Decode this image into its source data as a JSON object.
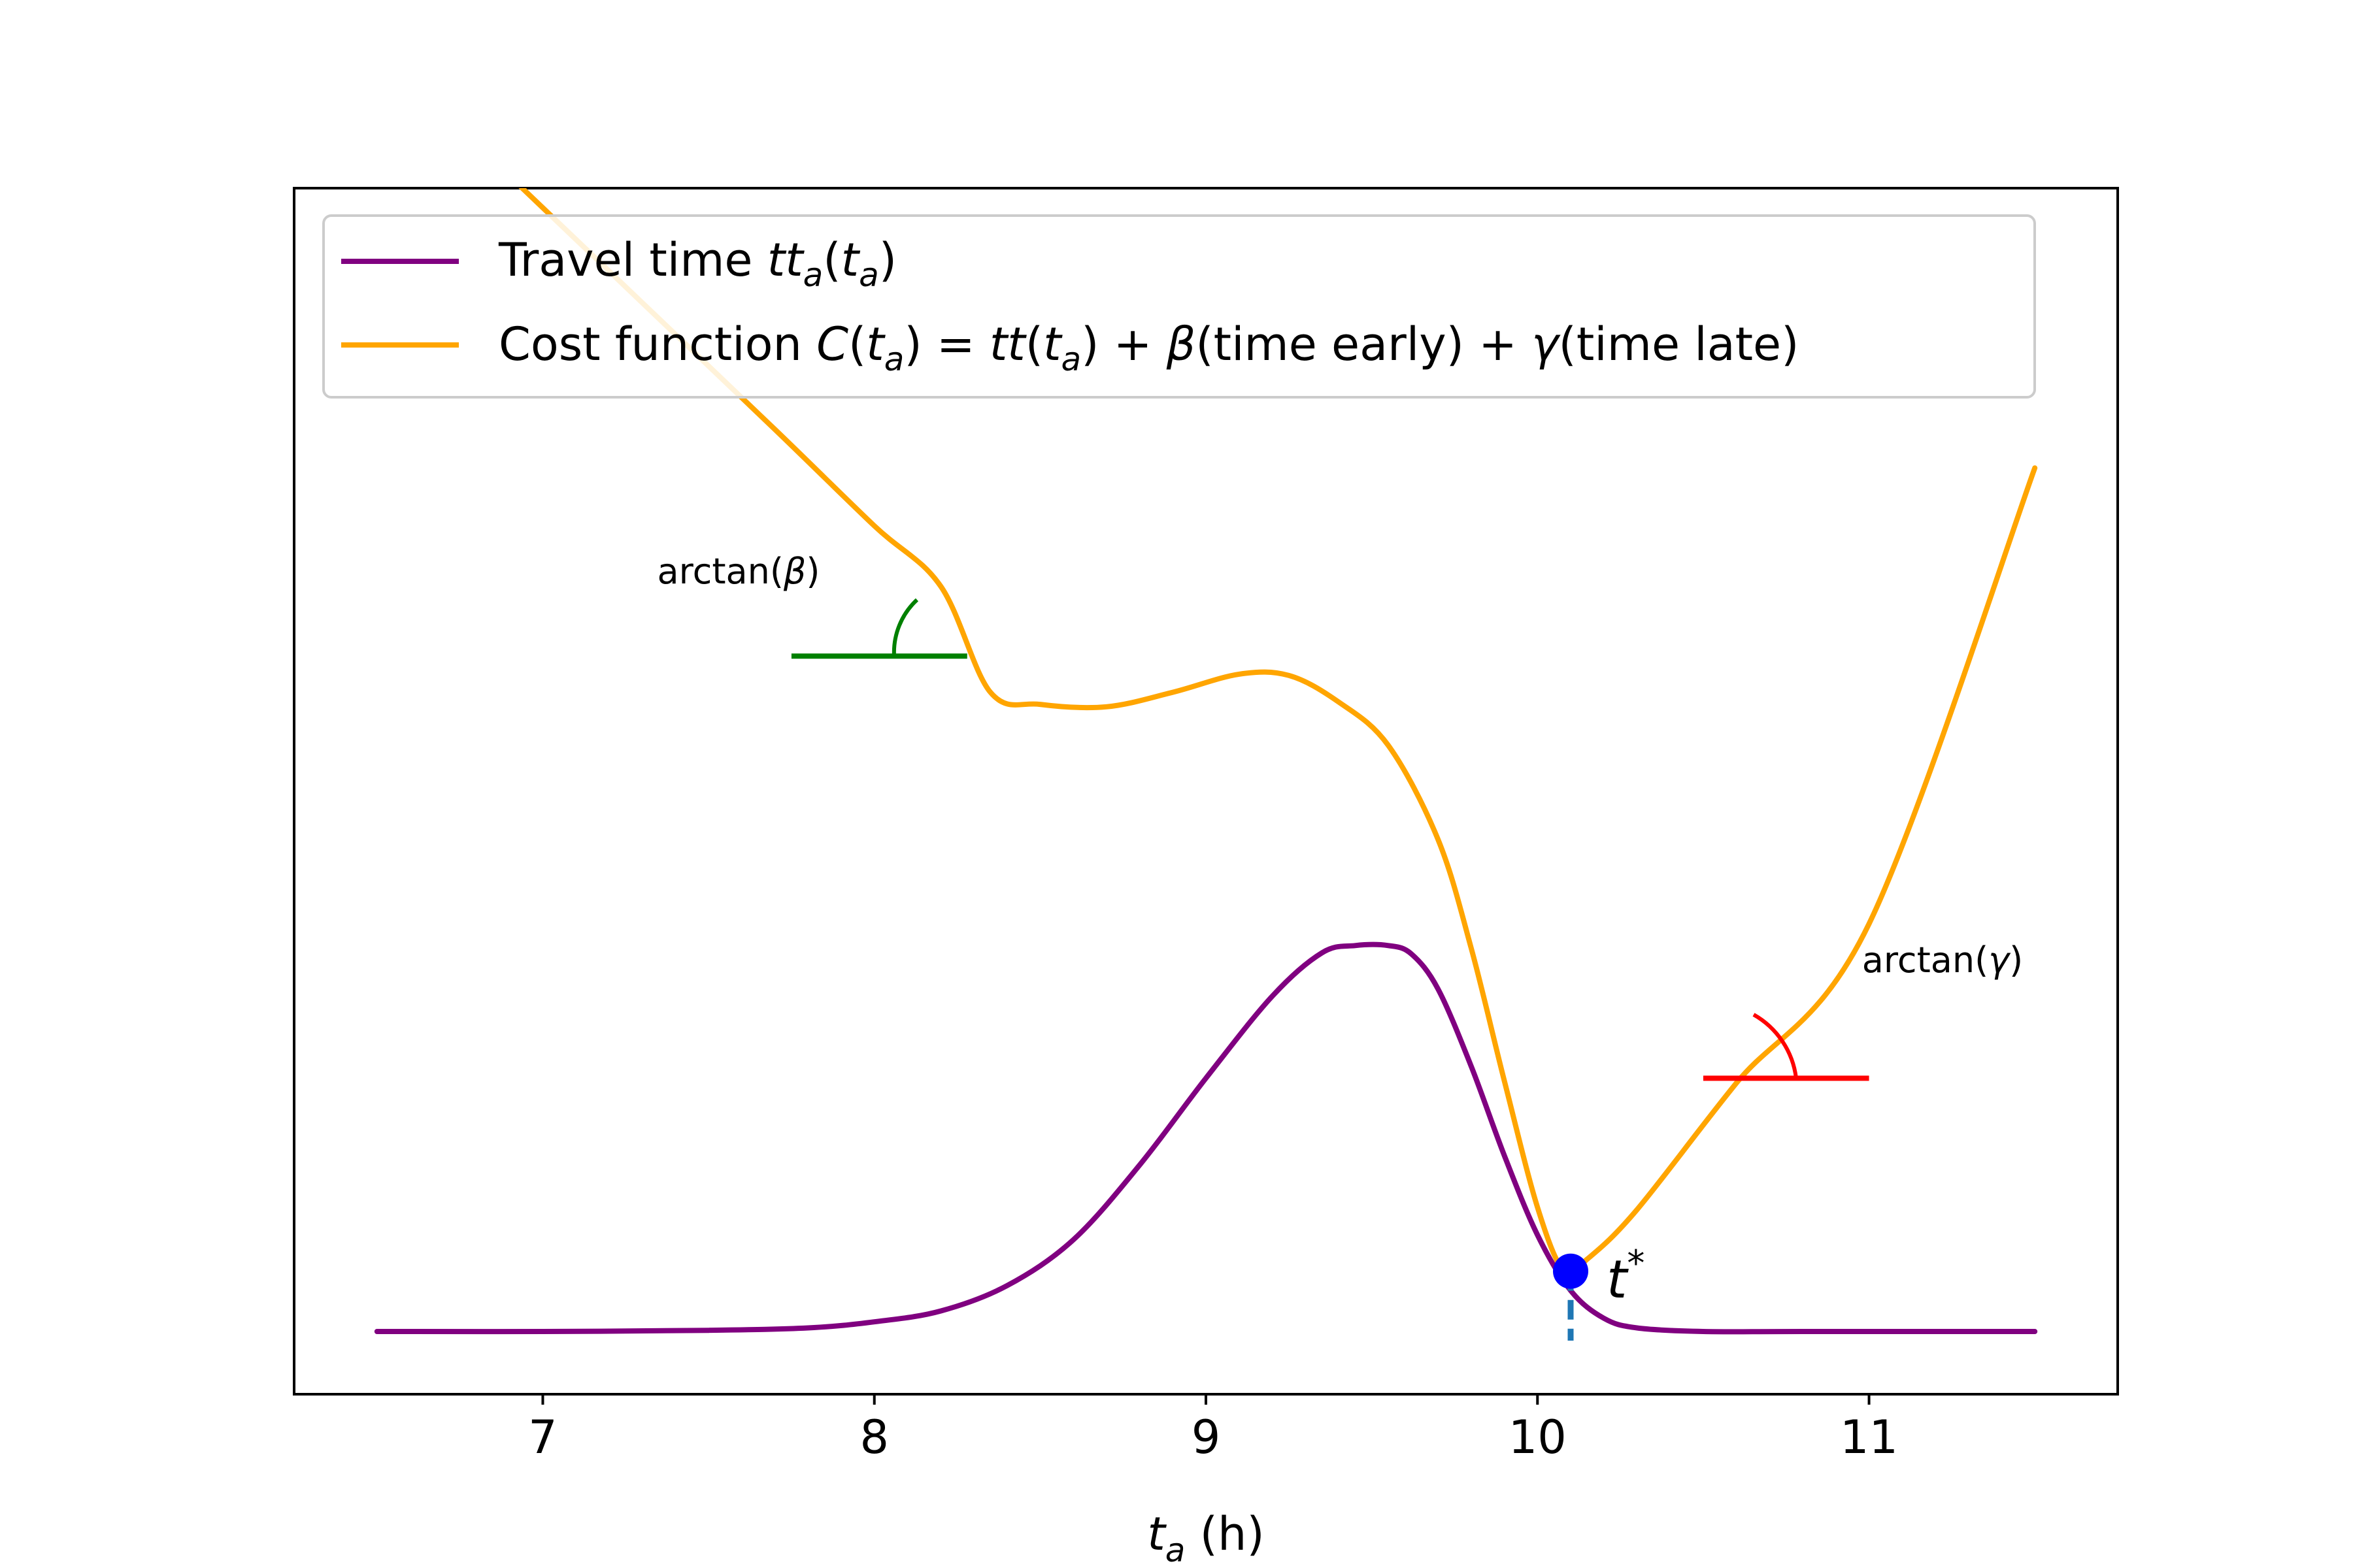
{
  "chart_data": {
    "type": "line",
    "xlabel": "t",
    "xlabel_sub": "a",
    "xlabel_unit": " (h)",
    "xlim": [
      6.25,
      11.75
    ],
    "ylim": [
      0,
      1
    ],
    "x_ticks": [
      7,
      8,
      9,
      10,
      11
    ],
    "x_tick_labels": [
      "7",
      "8",
      "9",
      "10",
      "11"
    ],
    "y_ticks_shown": false,
    "grid": false,
    "legend_position": "top-left",
    "legend": {
      "travel_prefix": "Travel time ",
      "travel_symbol": "tt",
      "sub_a": "a",
      "open_paren": "(",
      "close_paren": ")",
      "var_t": "t",
      "cost_prefix": "Cost function ",
      "var_C": "C",
      "equals": " = ",
      "plus": " + ",
      "beta": "β",
      "gamma": "γ",
      "time_early": "(time early)",
      "time_late": "(time late)"
    },
    "series": [
      {
        "name": "Travel time tt_a(t_a)",
        "color": "#800080",
        "x": [
          6.5,
          7.0,
          7.5,
          7.8,
          8.0,
          8.2,
          8.4,
          8.6,
          8.8,
          9.0,
          9.2,
          9.35,
          9.45,
          9.55,
          9.62,
          9.7,
          9.8,
          9.9,
          10.0,
          10.1,
          10.2,
          10.3,
          10.5,
          10.8,
          11.5
        ],
        "y": [
          0.052,
          0.052,
          0.053,
          0.055,
          0.06,
          0.069,
          0.09,
          0.128,
          0.19,
          0.262,
          0.33,
          0.366,
          0.372,
          0.372,
          0.365,
          0.336,
          0.272,
          0.198,
          0.132,
          0.086,
          0.063,
          0.055,
          0.052,
          0.052,
          0.052
        ]
      },
      {
        "name": "Cost function C(t_a) = tt(t_a) + β(time early) + γ(time late)",
        "color": "#ffa500",
        "x": [
          6.9,
          7.3,
          7.7,
          8.0,
          8.2,
          8.35,
          8.5,
          8.7,
          8.9,
          9.1,
          9.25,
          9.4,
          9.55,
          9.7,
          9.8,
          9.9,
          10.0,
          10.08,
          10.15,
          10.3,
          10.6,
          11.0,
          11.5
        ],
        "y": [
          1.01,
          0.905,
          0.8,
          0.72,
          0.67,
          0.582,
          0.572,
          0.57,
          0.582,
          0.597,
          0.596,
          0.574,
          0.538,
          0.46,
          0.37,
          0.26,
          0.155,
          0.102,
          0.112,
          0.153,
          0.258,
          0.39,
          0.768
        ]
      }
    ],
    "annotations": {
      "point": {
        "label": "t",
        "superscript": "*",
        "x": 10.1,
        "y": 0.102,
        "marker_color": "#0000ff",
        "label_color": "#1f77b4"
      },
      "beta_angle": {
        "label_prefix": "arctan(",
        "symbol": "β",
        "label_suffix": ")",
        "color": "#008000",
        "x_start": 7.75,
        "x_end": 8.28,
        "y": 0.612
      },
      "gamma_angle": {
        "label_prefix": "arctan(",
        "symbol": "γ",
        "label_suffix": ")",
        "color": "#ff0000",
        "x_start": 10.5,
        "x_end": 11.0,
        "y": 0.262
      }
    }
  }
}
